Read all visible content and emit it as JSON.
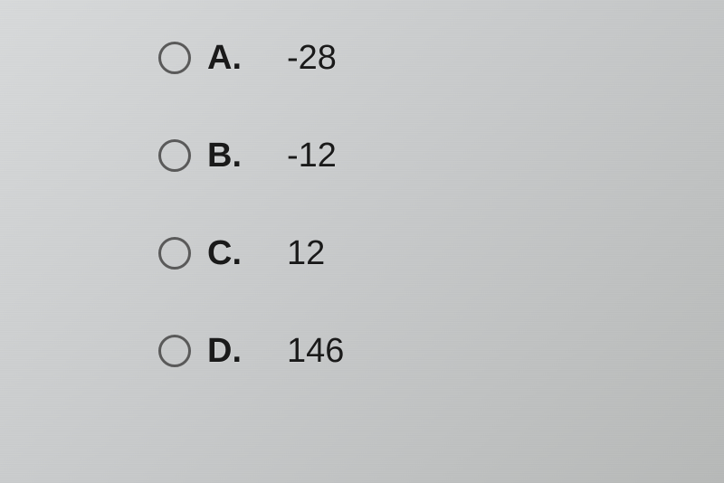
{
  "quiz": {
    "options": [
      {
        "letter": "A.",
        "value": "-28"
      },
      {
        "letter": "B.",
        "value": "-12"
      },
      {
        "letter": "C.",
        "value": "12"
      },
      {
        "letter": "D.",
        "value": "146"
      }
    ]
  },
  "styling": {
    "background_gradient_start": "#d8dadb",
    "background_gradient_end": "#b8bab9",
    "radio_border_color": "#5a5a5a",
    "text_color": "#1a1a1a",
    "letter_fontsize": 38,
    "value_fontsize": 38,
    "row_spacing": 60
  }
}
